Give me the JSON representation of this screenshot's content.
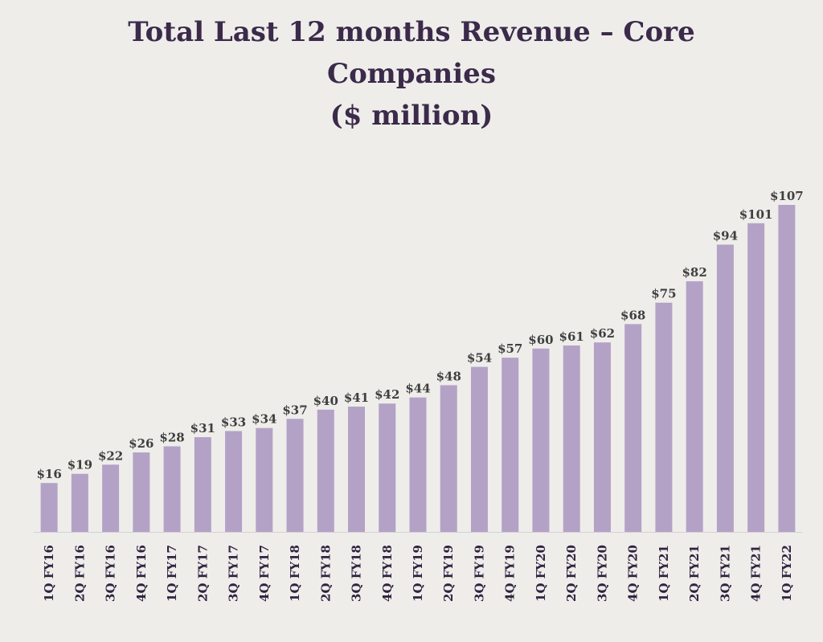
{
  "chart_data": {
    "type": "bar",
    "title_lines": [
      "Total Last 12 months Revenue – Core",
      "Companies",
      "($ million)"
    ],
    "categories": [
      "1Q FY16",
      "2Q FY16",
      "3Q FY16",
      "4Q FY16",
      "1Q FY17",
      "2Q FY17",
      "3Q FY17",
      "4Q FY17",
      "1Q FY18",
      "2Q FY18",
      "3Q FY18",
      "4Q FY18",
      "1Q FY19",
      "2Q FY19",
      "3Q FY19",
      "4Q FY19",
      "1Q FY20",
      "2Q FY20",
      "3Q FY20",
      "4Q FY20",
      "1Q FY21",
      "2Q FY21",
      "3Q FY21",
      "4Q FY21",
      "1Q FY22"
    ],
    "values": [
      16,
      19,
      22,
      26,
      28,
      31,
      33,
      34,
      37,
      40,
      41,
      42,
      44,
      48,
      54,
      57,
      60,
      61,
      62,
      68,
      75,
      82,
      94,
      101,
      107
    ],
    "data_labels": [
      "$16",
      "$19",
      "$22",
      "$26",
      "$28",
      "$31",
      "$33",
      "$34",
      "$37",
      "$40",
      "$41",
      "$42",
      "$44",
      "$48",
      "$54",
      "$57",
      "$60",
      "$61",
      "$62",
      "$68",
      "$75",
      "$82",
      "$94",
      "$101",
      "$107"
    ],
    "xlabel": "",
    "ylabel": "",
    "ylim": [
      0,
      107
    ],
    "grid": false,
    "legend": "none",
    "colors": {
      "bar": "#b3a2c6",
      "title": "#3b2a4a",
      "value_label": "#3f3f3f",
      "tick_label": "#2f2340",
      "background": "#eeedea"
    }
  }
}
